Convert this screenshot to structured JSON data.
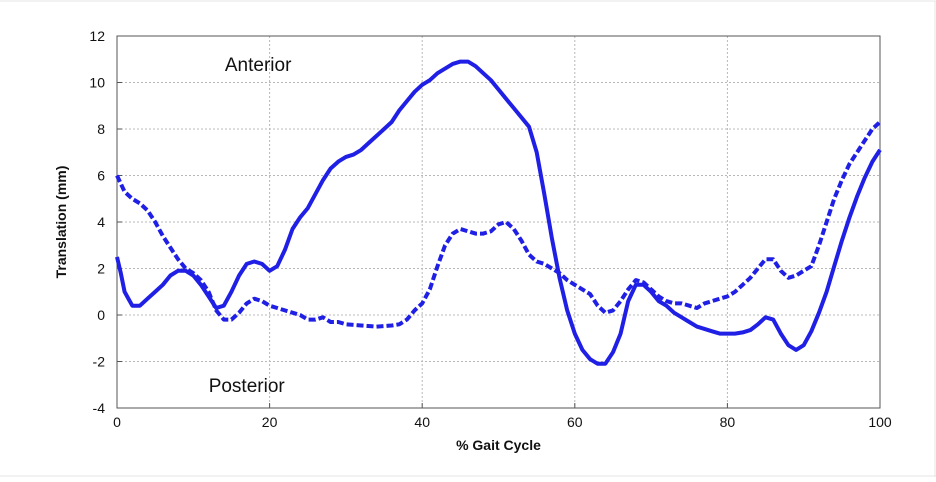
{
  "chart_data": {
    "type": "line",
    "xlabel": "% Gait Cycle",
    "ylabel": "Translation (mm)",
    "xlim": [
      0,
      100
    ],
    "ylim": [
      -4,
      12
    ],
    "xticks": [
      "0",
      "20",
      "40",
      "60",
      "80",
      "100"
    ],
    "yticks": [
      "-4",
      "-2",
      "0",
      "2",
      "4",
      "6",
      "8",
      "10",
      "12"
    ],
    "grid": true,
    "annotations": [
      {
        "text": "Anterior",
        "x": 18.5,
        "y": 10.8
      },
      {
        "text": "Posterior",
        "x": 17,
        "y": -3.0
      }
    ],
    "series": [
      {
        "style": "solid",
        "color": "#1f1fe6",
        "x": [
          0,
          0.5,
          1,
          2,
          3,
          4,
          5,
          6,
          7,
          8,
          9,
          10,
          11,
          12,
          13,
          14,
          15,
          16,
          17,
          18,
          19,
          20,
          21,
          22,
          23,
          24,
          25,
          26,
          27,
          28,
          29,
          30,
          31,
          32,
          33,
          34,
          35,
          36,
          37,
          38,
          39,
          40,
          41,
          42,
          43,
          44,
          45,
          46,
          47,
          48,
          49,
          50,
          51,
          52,
          53,
          54,
          55,
          56,
          57,
          58,
          59,
          60,
          61,
          62,
          63,
          64,
          65,
          66,
          67,
          68,
          69,
          70,
          71,
          72,
          73,
          74,
          75,
          76,
          77,
          78,
          79,
          80,
          81,
          82,
          83,
          84,
          85,
          86,
          87,
          88,
          89,
          90,
          91,
          92,
          93,
          94,
          95,
          96,
          97,
          98,
          99,
          100
        ],
        "y": [
          2.5,
          1.8,
          1.0,
          0.4,
          0.4,
          0.7,
          1.0,
          1.3,
          1.7,
          1.9,
          1.9,
          1.7,
          1.3,
          0.8,
          0.3,
          0.4,
          1.0,
          1.7,
          2.2,
          2.3,
          2.2,
          1.9,
          2.1,
          2.8,
          3.7,
          4.2,
          4.6,
          5.2,
          5.8,
          6.3,
          6.6,
          6.8,
          6.9,
          7.1,
          7.4,
          7.7,
          8.0,
          8.3,
          8.8,
          9.2,
          9.6,
          9.9,
          10.1,
          10.4,
          10.6,
          10.8,
          10.9,
          10.9,
          10.7,
          10.4,
          10.1,
          9.7,
          9.3,
          8.9,
          8.5,
          8.1,
          7.0,
          5.2,
          3.3,
          1.6,
          0.2,
          -0.8,
          -1.5,
          -1.9,
          -2.1,
          -2.1,
          -1.6,
          -0.8,
          0.6,
          1.3,
          1.3,
          1.0,
          0.6,
          0.4,
          0.1,
          -0.1,
          -0.3,
          -0.5,
          -0.6,
          -0.7,
          -0.8,
          -0.8,
          -0.8,
          -0.75,
          -0.65,
          -0.4,
          -0.1,
          -0.2,
          -0.8,
          -1.3,
          -1.5,
          -1.3,
          -0.7,
          0.1,
          1.0,
          2.1,
          3.2,
          4.2,
          5.1,
          5.9,
          6.6,
          7.1
        ]
      },
      {
        "style": "dashed",
        "color": "#1f1fe6",
        "x": [
          0,
          1,
          2,
          3,
          4,
          5,
          6,
          7,
          8,
          9,
          10,
          11,
          12,
          13,
          14,
          15,
          16,
          17,
          18,
          19,
          20,
          21,
          22,
          23,
          24,
          25,
          26,
          27,
          28,
          29,
          30,
          32,
          34,
          36,
          37,
          38,
          39,
          40,
          41,
          42,
          43,
          44,
          45,
          46,
          47,
          48,
          49,
          50,
          51,
          52,
          53,
          54,
          55,
          56,
          57,
          58,
          59,
          60,
          61,
          62,
          63,
          64,
          65,
          66,
          67,
          68,
          69,
          70,
          71,
          72,
          73,
          74,
          75,
          76,
          77,
          78,
          79,
          80,
          81,
          82,
          83,
          84,
          85,
          86,
          87,
          88,
          89,
          90,
          91,
          92,
          93,
          94,
          95,
          96,
          97,
          98,
          99,
          100
        ],
        "y": [
          6.0,
          5.3,
          5.0,
          4.8,
          4.5,
          4.0,
          3.4,
          2.9,
          2.4,
          2.0,
          1.8,
          1.5,
          1.0,
          0.2,
          -0.2,
          -0.2,
          0.1,
          0.5,
          0.7,
          0.6,
          0.4,
          0.3,
          0.2,
          0.1,
          0.0,
          -0.2,
          -0.2,
          -0.1,
          -0.3,
          -0.3,
          -0.4,
          -0.45,
          -0.5,
          -0.45,
          -0.4,
          -0.2,
          0.2,
          0.5,
          1.1,
          2.1,
          3.0,
          3.5,
          3.7,
          3.6,
          3.5,
          3.5,
          3.6,
          3.9,
          4.0,
          3.7,
          3.2,
          2.6,
          2.3,
          2.2,
          2.0,
          1.8,
          1.5,
          1.3,
          1.1,
          0.9,
          0.4,
          0.1,
          0.2,
          0.6,
          1.1,
          1.5,
          1.4,
          1.1,
          0.8,
          0.6,
          0.5,
          0.5,
          0.4,
          0.3,
          0.5,
          0.6,
          0.7,
          0.8,
          1.0,
          1.3,
          1.6,
          2.0,
          2.4,
          2.4,
          1.9,
          1.6,
          1.7,
          1.9,
          2.1,
          3.0,
          4.0,
          5.0,
          5.8,
          6.5,
          7.0,
          7.5,
          8.0,
          8.3
        ]
      }
    ]
  }
}
